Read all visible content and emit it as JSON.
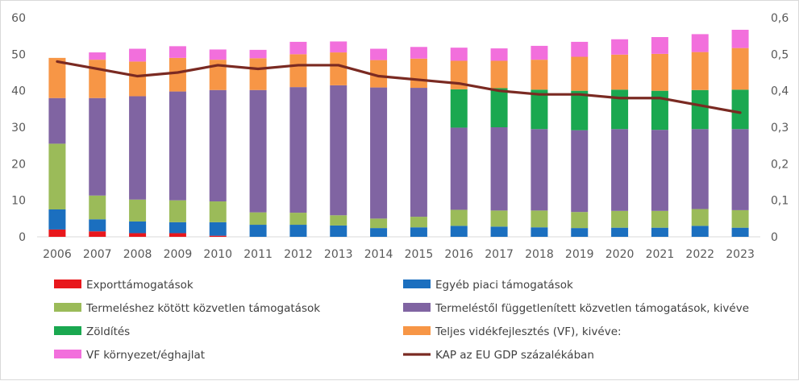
{
  "chart_data": {
    "type": "bar",
    "stacked": true,
    "categories": [
      "2006",
      "2007",
      "2008",
      "2009",
      "2010",
      "2011",
      "2012",
      "2013",
      "2014",
      "2015",
      "2016",
      "2017",
      "2018",
      "2019",
      "2020",
      "2021",
      "2022",
      "2023"
    ],
    "y_left": {
      "ylim": [
        0,
        60
      ],
      "ticks": [
        "0",
        "10",
        "20",
        "30",
        "40",
        "50",
        "60"
      ]
    },
    "y_right": {
      "ylim": [
        0,
        0.6
      ],
      "ticks": [
        "0",
        "0,1",
        "0,2",
        "0,3",
        "0,4",
        "0,5",
        "0,6"
      ]
    },
    "grid": false,
    "legend_position": "bottom",
    "series": [
      {
        "name": "Exporttámogatások",
        "color": "#e8171c",
        "values": [
          2.0,
          1.5,
          1.0,
          1.0,
          0.3,
          0,
          0,
          0,
          0,
          0,
          0,
          0,
          0,
          0,
          0,
          0,
          0,
          0
        ]
      },
      {
        "name": "Egyéb piaci támogatások",
        "color": "#1b6fbf",
        "values": [
          5.5,
          3.3,
          3.2,
          3.0,
          3.7,
          3.3,
          3.3,
          3.1,
          2.4,
          2.6,
          3.0,
          2.8,
          2.6,
          2.4,
          2.5,
          2.5,
          3.0,
          2.5
        ]
      },
      {
        "name": "Termeléshez kötött közvetlen támogatások",
        "color": "#9bbb59",
        "values": [
          18.0,
          6.5,
          6.0,
          6.0,
          5.7,
          3.4,
          3.3,
          2.8,
          2.6,
          2.9,
          4.4,
          4.4,
          4.6,
          4.4,
          4.6,
          4.6,
          4.6,
          4.8
        ]
      },
      {
        "name": "Termeléstől függetlenített közvetlen támogatások, kivéve",
        "color": "#8064a2",
        "values": [
          12.5,
          26.7,
          28.3,
          29.8,
          30.5,
          33.5,
          34.4,
          35.6,
          35.9,
          35.3,
          22.5,
          22.8,
          22.3,
          22.4,
          22.4,
          22.2,
          21.9,
          22.2
        ]
      },
      {
        "name": "Zöldítés",
        "color": "#1aa850",
        "values": [
          0,
          0,
          0,
          0,
          0,
          0,
          0,
          0,
          0,
          0,
          10.5,
          10.7,
          10.8,
          10.8,
          10.8,
          10.7,
          10.7,
          10.8
        ]
      },
      {
        "name": "Teljes vidékfejlesztés (VF), kivéve:",
        "color": "#f79646",
        "values": [
          11.0,
          10.5,
          9.5,
          9.2,
          8.3,
          8.7,
          9.0,
          9.0,
          7.5,
          8.0,
          7.8,
          7.5,
          8.2,
          9.3,
          9.6,
          10.1,
          10.4,
          11.4
        ]
      },
      {
        "name": "VF környezet/éghajlat",
        "color": "#f26fdc",
        "values": [
          0,
          2.0,
          3.5,
          3.2,
          2.8,
          2.3,
          3.4,
          3.0,
          3.1,
          3.2,
          3.6,
          3.4,
          3.8,
          4.1,
          4.2,
          4.6,
          4.9,
          5.0
        ]
      }
    ],
    "line": {
      "name": "KAP az EU GDP százalékában",
      "color": "#7a2a22",
      "axis": "right",
      "values": [
        0.48,
        0.46,
        0.44,
        0.45,
        0.47,
        0.46,
        0.47,
        0.47,
        0.44,
        0.43,
        0.42,
        0.4,
        0.39,
        0.39,
        0.38,
        0.38,
        0.36,
        0.34
      ]
    }
  }
}
